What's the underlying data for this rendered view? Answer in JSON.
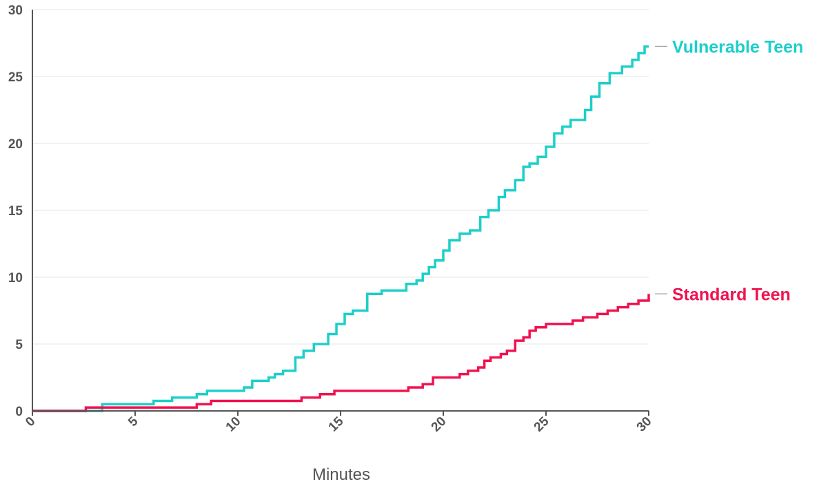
{
  "chart_data": {
    "type": "line",
    "xlabel": "Minutes",
    "ylabel": "",
    "xlim": [
      0,
      30
    ],
    "ylim": [
      0,
      30
    ],
    "xticks": [
      0,
      5,
      10,
      15,
      20,
      25,
      30
    ],
    "yticks": [
      0,
      5,
      10,
      15,
      20,
      25,
      30
    ],
    "grid": "horizontal",
    "legend": "direct labels at right end of lines",
    "step": true,
    "series": [
      {
        "name": "Vulnerable Teen",
        "color": "#1ccfc9",
        "x": [
          0,
          2.8,
          3.4,
          5.9,
          6.8,
          8.0,
          8.5,
          10.3,
          10.7,
          11.5,
          11.8,
          12.2,
          12.8,
          13.2,
          13.7,
          14.4,
          14.8,
          15.2,
          15.6,
          16.3,
          17.0,
          18.2,
          18.7,
          19.0,
          19.3,
          19.6,
          20.0,
          20.3,
          20.8,
          21.3,
          21.8,
          22.2,
          22.7,
          23.0,
          23.5,
          23.9,
          24.2,
          24.6,
          25.0,
          25.4,
          25.8,
          26.2,
          26.9,
          27.2,
          27.6,
          28.1,
          28.7,
          29.2,
          29.5,
          29.8,
          30.0
        ],
        "y": [
          0,
          0,
          0.5,
          0.75,
          1.0,
          1.25,
          1.5,
          1.75,
          2.25,
          2.5,
          2.75,
          3.0,
          4.0,
          4.5,
          5.0,
          5.75,
          6.5,
          7.25,
          7.5,
          8.75,
          9.0,
          9.5,
          9.75,
          10.25,
          10.75,
          11.25,
          12.0,
          12.75,
          13.25,
          13.5,
          14.5,
          15.0,
          16.0,
          16.5,
          17.25,
          18.25,
          18.5,
          19.0,
          19.75,
          20.75,
          21.25,
          21.75,
          22.5,
          23.5,
          24.5,
          25.25,
          25.75,
          26.25,
          26.75,
          27.25,
          27.25
        ]
      },
      {
        "name": "Standard Teen",
        "color": "#f0124f",
        "x": [
          0,
          2.6,
          8.0,
          8.7,
          13.1,
          14.0,
          14.7,
          18.3,
          19.0,
          19.5,
          20.8,
          21.2,
          21.7,
          22.0,
          22.3,
          22.8,
          23.1,
          23.5,
          23.9,
          24.2,
          24.5,
          25.0,
          26.3,
          26.8,
          27.0,
          27.5,
          28.0,
          28.5,
          29.0,
          29.5,
          30.0
        ],
        "y": [
          0,
          0.25,
          0.5,
          0.75,
          1.0,
          1.25,
          1.5,
          1.75,
          2.0,
          2.5,
          2.75,
          3.0,
          3.25,
          3.75,
          4.0,
          4.25,
          4.5,
          5.25,
          5.5,
          6.0,
          6.25,
          6.5,
          6.75,
          7.0,
          7.0,
          7.25,
          7.5,
          7.75,
          8.0,
          8.25,
          8.75
        ]
      }
    ]
  }
}
